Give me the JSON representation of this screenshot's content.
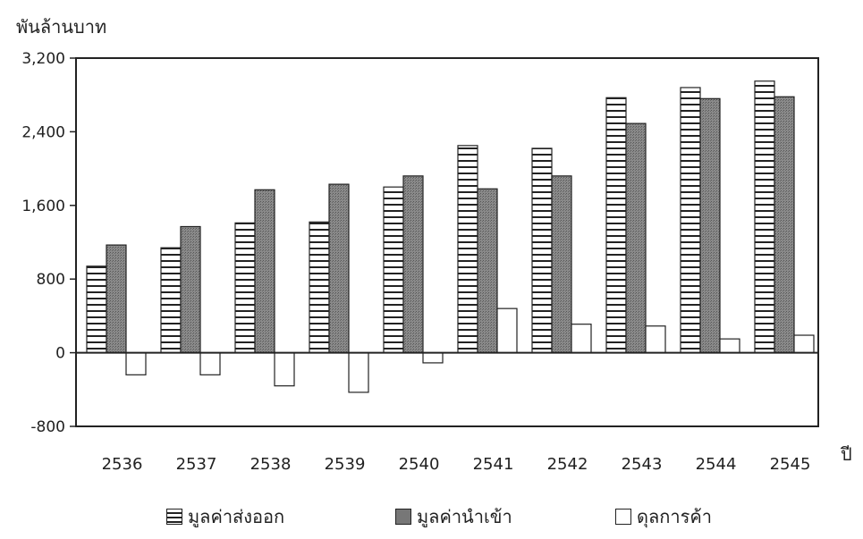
{
  "chart_data": {
    "type": "bar",
    "ylabel": "พันล้านบาท",
    "xlabel": "ปี",
    "categories": [
      "2536",
      "2537",
      "2538",
      "2539",
      "2540",
      "2541",
      "2542",
      "2543",
      "2544",
      "2545"
    ],
    "series": [
      {
        "name": "มูลค่าส่งออก",
        "values": [
          940,
          1140,
          1410,
          1420,
          1800,
          2250,
          2220,
          2770,
          2880,
          2950
        ],
        "style": "striped"
      },
      {
        "name": "มูลค่านำเข้า",
        "values": [
          1170,
          1370,
          1770,
          1830,
          1920,
          1780,
          1920,
          2490,
          2760,
          2780
        ],
        "style": "dark",
        "color": "#777777"
      },
      {
        "name": "ดุลการค้า",
        "values": [
          -240,
          -240,
          -360,
          -430,
          -110,
          480,
          310,
          290,
          150,
          190
        ],
        "style": "outline"
      }
    ],
    "ylim": [
      -800,
      3200
    ],
    "yticks": [
      -800,
      0,
      800,
      1600,
      2400,
      3200
    ],
    "ytick_labels": [
      "-800",
      "0",
      "800",
      "1,600",
      "2,400",
      "3,200"
    ],
    "grid": false,
    "legend_position": "bottom"
  }
}
